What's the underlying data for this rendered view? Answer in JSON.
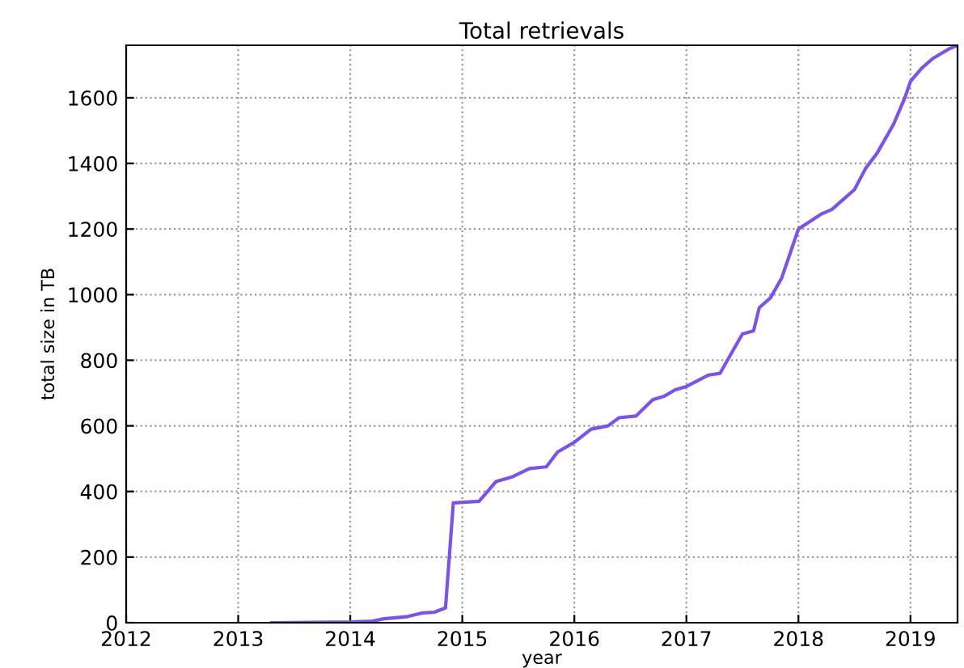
{
  "chart_data": {
    "type": "line",
    "title": "Total retrievals",
    "xlabel": "year",
    "ylabel": "total size in TB",
    "x": [
      2013.3,
      2014.0,
      2014.2,
      2014.3,
      2014.5,
      2014.65,
      2014.75,
      2014.85,
      2014.92,
      2015.15,
      2015.3,
      2015.45,
      2015.6,
      2015.75,
      2015.85,
      2016.0,
      2016.15,
      2016.3,
      2016.4,
      2016.55,
      2016.7,
      2016.8,
      2016.9,
      2017.0,
      2017.2,
      2017.3,
      2017.4,
      2017.5,
      2017.6,
      2017.65,
      2017.75,
      2017.85,
      2017.95,
      2018.0,
      2018.2,
      2018.3,
      2018.4,
      2018.5,
      2018.6,
      2018.7,
      2018.85,
      2018.95,
      2019.0,
      2019.1,
      2019.2,
      2019.35,
      2019.42
    ],
    "series": [
      {
        "color": "#7b52f0",
        "values": [
          0,
          2,
          5,
          12,
          18,
          30,
          32,
          45,
          365,
          370,
          430,
          445,
          470,
          475,
          520,
          550,
          590,
          600,
          625,
          630,
          680,
          690,
          710,
          720,
          755,
          760,
          820,
          880,
          890,
          960,
          990,
          1050,
          1150,
          1200,
          1245,
          1260,
          1290,
          1320,
          1385,
          1430,
          1520,
          1600,
          1650,
          1690,
          1720,
          1750,
          1760
        ]
      }
    ],
    "xlim": [
      2012,
      2019.42
    ],
    "ylim": [
      0,
      1760
    ],
    "xticks": [
      2012,
      2013,
      2014,
      2015,
      2016,
      2017,
      2018,
      2019
    ],
    "yticks": [
      0,
      200,
      400,
      600,
      800,
      1000,
      1200,
      1400,
      1600
    ],
    "grid": true,
    "legend": false,
    "marker": "none",
    "line_style": "solid"
  }
}
